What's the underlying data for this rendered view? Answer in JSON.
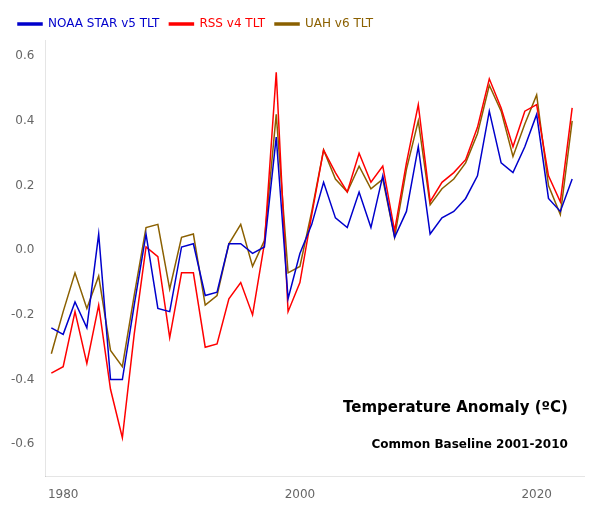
{
  "chart_data": {
    "type": "line",
    "annotations": [
      "Temperature Anomaly (ºC)",
      "Common Baseline 2001-2010"
    ],
    "x": [
      1979,
      1980,
      1981,
      1982,
      1983,
      1984,
      1985,
      1986,
      1987,
      1988,
      1989,
      1990,
      1991,
      1992,
      1993,
      1994,
      1995,
      1996,
      1997,
      1998,
      1999,
      2000,
      2001,
      2002,
      2003,
      2004,
      2005,
      2006,
      2007,
      2008,
      2009,
      2010,
      2011,
      2012,
      2013,
      2014,
      2015,
      2016,
      2017,
      2018,
      2019,
      2020,
      2021,
      2022,
      2023
    ],
    "series": [
      {
        "name": "UAH v6 TLT",
        "color": "#8B6000",
        "values": [
          -0.32,
          -0.19,
          -0.07,
          -0.18,
          -0.08,
          -0.31,
          -0.36,
          -0.14,
          0.07,
          0.08,
          -0.12,
          0.04,
          0.05,
          -0.17,
          -0.14,
          0.02,
          0.08,
          -0.05,
          0.03,
          0.42,
          -0.07,
          -0.05,
          0.12,
          0.31,
          0.22,
          0.18,
          0.26,
          0.19,
          0.22,
          0.04,
          0.25,
          0.4,
          0.14,
          0.19,
          0.22,
          0.27,
          0.36,
          0.51,
          0.43,
          0.29,
          0.39,
          0.48,
          0.2,
          0.11,
          0.4
        ]
      },
      {
        "name": "RSS v4 TLT",
        "color": "#FF0000",
        "values": [
          -0.38,
          -0.36,
          -0.19,
          -0.35,
          -0.17,
          -0.43,
          -0.58,
          -0.26,
          0.01,
          -0.02,
          -0.27,
          -0.07,
          -0.07,
          -0.3,
          -0.29,
          -0.15,
          -0.1,
          -0.2,
          0.02,
          0.55,
          -0.19,
          -0.1,
          0.11,
          0.31,
          0.24,
          0.18,
          0.3,
          0.21,
          0.26,
          0.06,
          0.27,
          0.45,
          0.15,
          0.21,
          0.24,
          0.28,
          0.38,
          0.53,
          0.44,
          0.32,
          0.43,
          0.45,
          0.23,
          0.15,
          0.44
        ]
      },
      {
        "name": "NOAA STAR v5 TLT",
        "color": "#0000CC",
        "values": [
          -0.24,
          -0.26,
          -0.16,
          -0.24,
          0.05,
          -0.4,
          -0.4,
          -0.17,
          0.05,
          -0.18,
          -0.19,
          0.01,
          0.02,
          -0.14,
          -0.13,
          0.02,
          0.02,
          -0.01,
          0.01,
          0.35,
          -0.15,
          -0.01,
          0.08,
          0.21,
          0.1,
          0.07,
          0.18,
          0.07,
          0.23,
          0.04,
          0.12,
          0.32,
          0.05,
          0.1,
          0.12,
          0.16,
          0.23,
          0.43,
          0.27,
          0.24,
          0.32,
          0.42,
          0.16,
          0.12,
          0.22
        ]
      }
    ],
    "xlim": [
      1978.5,
      2024
    ],
    "xticks": [
      1980,
      2000,
      2020
    ],
    "ylim": [
      -0.7,
      0.65
    ],
    "yticks": [
      -0.6,
      -0.4,
      -0.2,
      {
        "value": 0.0,
        "label": "0.0"
      },
      0.2,
      0.4,
      0.6
    ],
    "grid": false,
    "legend": "upper left"
  }
}
